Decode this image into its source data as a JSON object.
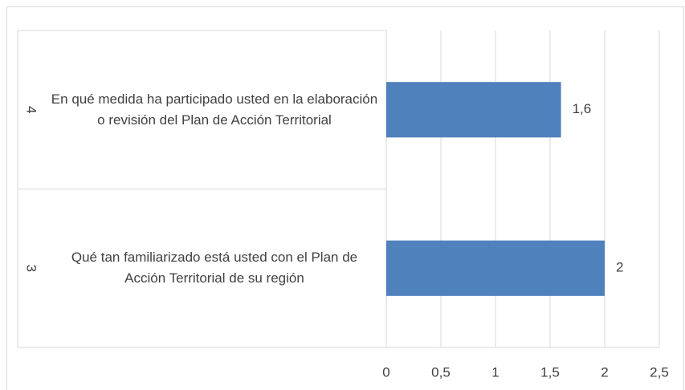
{
  "chart_data": {
    "type": "bar",
    "orientation": "horizontal",
    "groups": [
      "4",
      "3"
    ],
    "categories": [
      "En qué medida ha participado usted en la elaboración o revisión del Plan de Acción Territorial",
      "Qué tan familiarizado está usted con el Plan de Acción Territorial de su región"
    ],
    "values": [
      1.6,
      2
    ],
    "value_labels": [
      "1,6",
      "2"
    ],
    "color": "#4f81bd",
    "xlim": [
      0,
      2.5
    ],
    "xticks": [
      0,
      {
        "value": 0.5,
        "label": "0,5"
      },
      1,
      {
        "value": 1.5,
        "label": "1,5"
      },
      2,
      {
        "value": 2.5,
        "label": "2,5"
      }
    ],
    "grid": true
  }
}
